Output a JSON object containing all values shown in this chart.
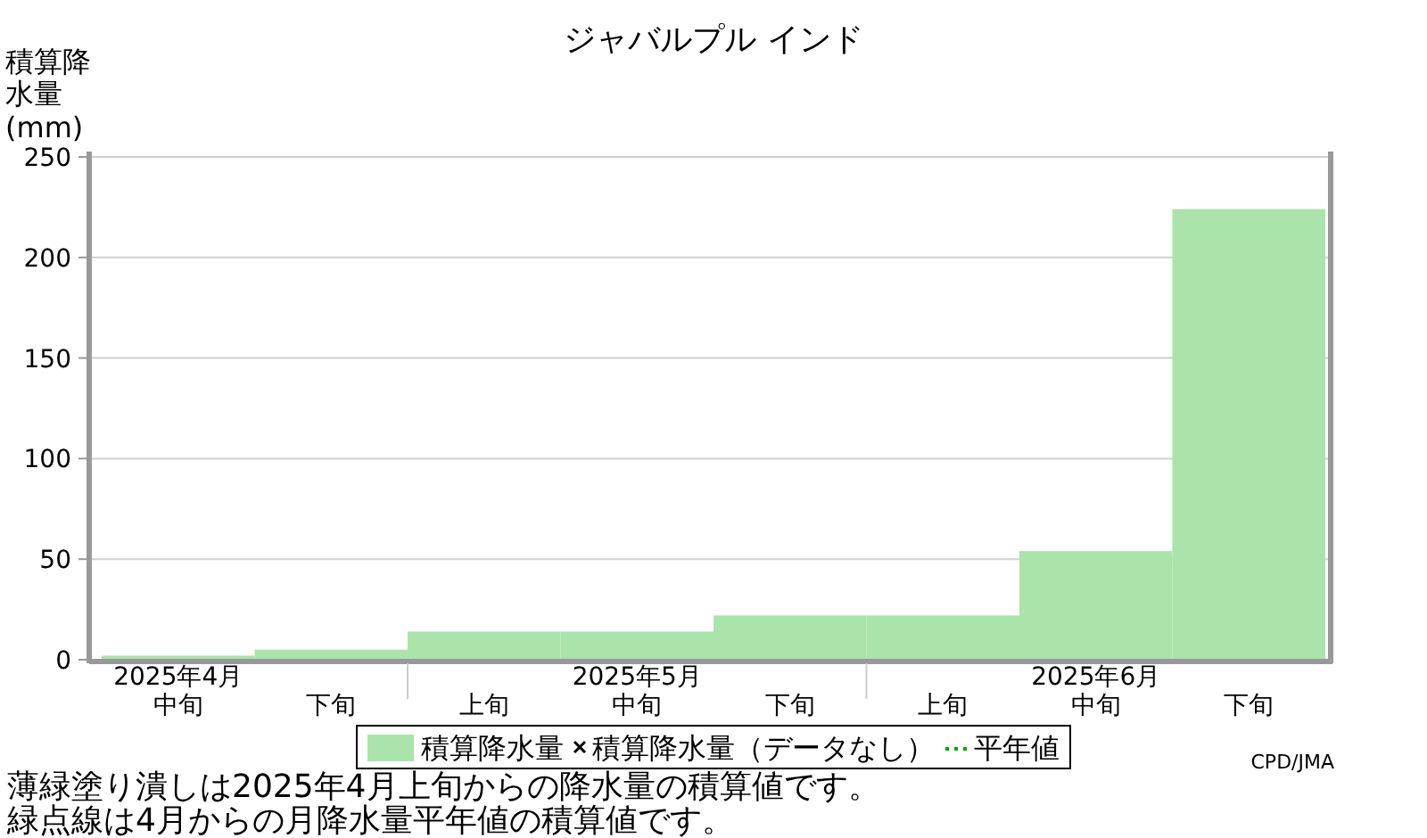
{
  "chart_data": {
    "type": "bar",
    "title": "ジャバルプル インド",
    "ylabel": "積算降水量(mm)",
    "categories": [
      "2025年4月中旬",
      "下旬",
      "上旬",
      "2025年5月中旬",
      "下旬",
      "上旬",
      "2025年6月中旬",
      "下旬"
    ],
    "series": [
      {
        "name": "積算降水量",
        "color": "#aae4aa",
        "values": [
          2,
          5,
          14,
          14,
          22,
          22,
          54,
          224
        ]
      },
      {
        "name": "積算降水量（データなし）",
        "type": "scatter",
        "marker": "cross",
        "color": "#000000",
        "values": [
          null,
          null,
          null,
          null,
          null,
          null,
          null,
          null
        ]
      },
      {
        "name": "平年値",
        "type": "line",
        "line_style": "dotted",
        "color": "#00aa00",
        "values": [
          null,
          null,
          null,
          null,
          null,
          null,
          null,
          null
        ]
      }
    ],
    "ylim": [
      0,
      250
    ],
    "yticks": [
      0,
      50,
      100,
      150,
      200,
      250
    ],
    "grid": "y",
    "legend": "bottom",
    "annotations": [
      "CPD/JMA",
      "薄緑塗り潰しは2025年4月上旬からの降水量の積算値です。",
      "緑点線は4月からの月降水量平年値の積算値です。"
    ]
  }
}
